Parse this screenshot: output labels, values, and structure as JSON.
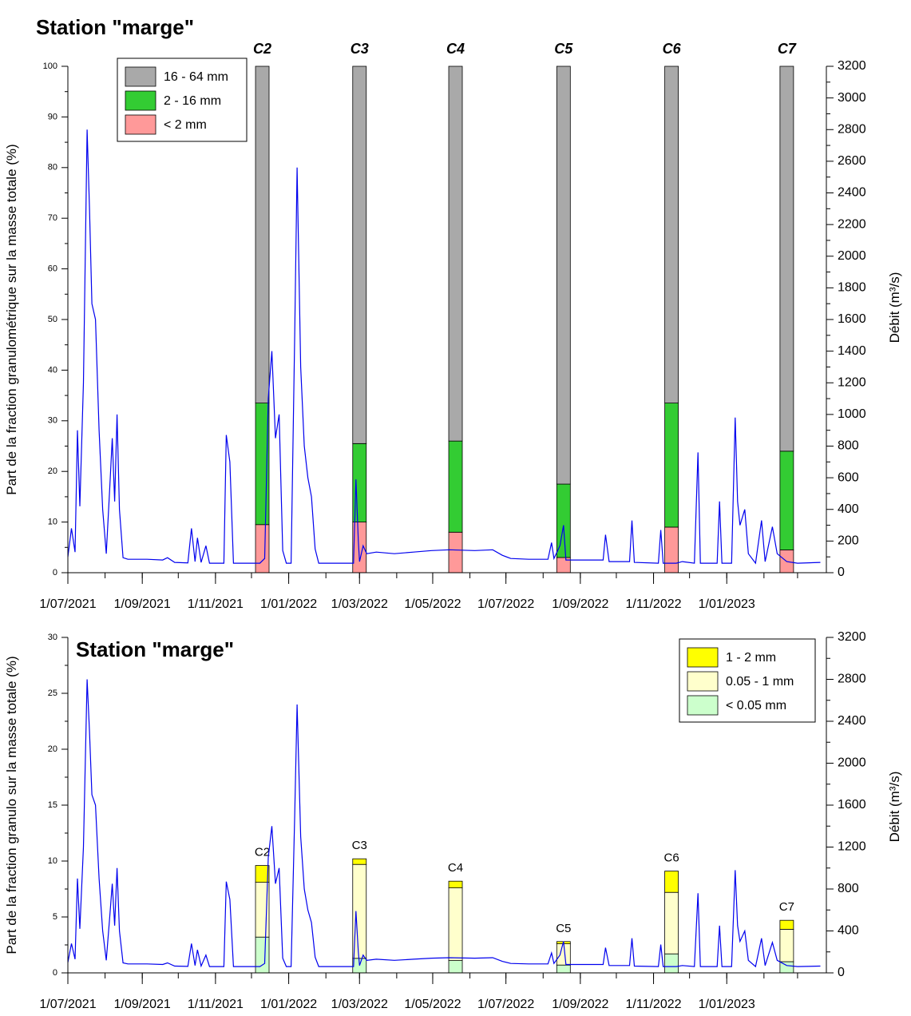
{
  "colors": {
    "gray": "#a9a9a9",
    "green": "#33cc33",
    "pink": "#ff9999",
    "yellow": "#ffff00",
    "cream": "#ffffcc",
    "mint": "#ccffcc",
    "flow": "#0000ee"
  },
  "chart_data": [
    {
      "type": "bar",
      "title": "Station \"marge\"",
      "ylabel": "Part de la fraction granulométrique sur la masse totale (%)",
      "y2label": "Débit (m³/s)",
      "ylim": [
        0,
        100
      ],
      "y2lim": [
        0,
        3200
      ],
      "x_ticks": [
        "1/07/2021",
        "1/09/2021",
        "1/11/2021",
        "1/01/2022",
        "1/03/2022",
        "1/05/2022",
        "1/07/2022",
        "1/09/2022",
        "1/11/2022",
        "1/01/2023"
      ],
      "legend_position": "top-left",
      "legend": [
        {
          "label": "16 - 64 mm",
          "color_key": "gray"
        },
        {
          "label": "2 - 16 mm",
          "color_key": "green"
        },
        {
          "label": "< 2 mm",
          "color_key": "pink"
        }
      ],
      "campaigns": [
        {
          "label": "C2",
          "date": "2021-12-10",
          "values": [
            9.5,
            24.0,
            66.5
          ]
        },
        {
          "label": "C3",
          "date": "2022-03-01",
          "values": [
            10.0,
            15.5,
            74.5
          ]
        },
        {
          "label": "C4",
          "date": "2022-05-20",
          "values": [
            8.0,
            18.0,
            74.0
          ]
        },
        {
          "label": "C5",
          "date": "2022-08-18",
          "values": [
            3.0,
            14.5,
            82.5
          ]
        },
        {
          "label": "C6",
          "date": "2022-11-16",
          "values": [
            9.0,
            24.5,
            66.5
          ]
        },
        {
          "label": "C7",
          "date": "2023-02-20",
          "values": [
            4.5,
            19.5,
            76.0
          ]
        }
      ],
      "flow_series": {
        "name": "Débit",
        "points": [
          [
            "2021-07-01",
            100
          ],
          [
            "2021-07-04",
            280
          ],
          [
            "2021-07-07",
            130
          ],
          [
            "2021-07-09",
            900
          ],
          [
            "2021-07-11",
            420
          ],
          [
            "2021-07-14",
            1200
          ],
          [
            "2021-07-17",
            2800
          ],
          [
            "2021-07-19",
            2300
          ],
          [
            "2021-07-21",
            1700
          ],
          [
            "2021-07-24",
            1600
          ],
          [
            "2021-07-27",
            900
          ],
          [
            "2021-07-30",
            400
          ],
          [
            "2021-08-02",
            120
          ],
          [
            "2021-08-05",
            550
          ],
          [
            "2021-08-07",
            850
          ],
          [
            "2021-08-09",
            450
          ],
          [
            "2021-08-11",
            1000
          ],
          [
            "2021-08-13",
            400
          ],
          [
            "2021-08-16",
            95
          ],
          [
            "2021-08-20",
            85
          ],
          [
            "2021-09-05",
            85
          ],
          [
            "2021-09-18",
            80
          ],
          [
            "2021-09-22",
            95
          ],
          [
            "2021-09-28",
            65
          ],
          [
            "2021-10-09",
            62
          ],
          [
            "2021-10-12",
            280
          ],
          [
            "2021-10-15",
            70
          ],
          [
            "2021-10-17",
            220
          ],
          [
            "2021-10-20",
            65
          ],
          [
            "2021-10-24",
            170
          ],
          [
            "2021-10-27",
            60
          ],
          [
            "2021-11-08",
            60
          ],
          [
            "2021-11-10",
            870
          ],
          [
            "2021-11-13",
            700
          ],
          [
            "2021-11-16",
            60
          ],
          [
            "2021-12-08",
            60
          ],
          [
            "2021-12-12",
            90
          ],
          [
            "2021-12-15",
            1100
          ],
          [
            "2021-12-18",
            1400
          ],
          [
            "2021-12-21",
            850
          ],
          [
            "2021-12-24",
            1000
          ],
          [
            "2021-12-27",
            140
          ],
          [
            "2021-12-30",
            60
          ],
          [
            "2022-01-03",
            60
          ],
          [
            "2022-01-06",
            1500
          ],
          [
            "2022-01-08",
            2560
          ],
          [
            "2022-01-11",
            1300
          ],
          [
            "2022-01-14",
            800
          ],
          [
            "2022-01-17",
            600
          ],
          [
            "2022-01-20",
            480
          ],
          [
            "2022-01-23",
            150
          ],
          [
            "2022-01-26",
            60
          ],
          [
            "2022-02-24",
            60
          ],
          [
            "2022-02-26",
            590
          ],
          [
            "2022-02-28",
            200
          ],
          [
            "2022-03-01",
            70
          ],
          [
            "2022-03-04",
            170
          ],
          [
            "2022-03-07",
            120
          ],
          [
            "2022-03-15",
            130
          ],
          [
            "2022-03-30",
            120
          ],
          [
            "2022-04-15",
            130
          ],
          [
            "2022-04-30",
            140
          ],
          [
            "2022-05-15",
            145
          ],
          [
            "2022-06-05",
            140
          ],
          [
            "2022-06-20",
            145
          ],
          [
            "2022-06-28",
            110
          ],
          [
            "2022-07-05",
            90
          ],
          [
            "2022-07-20",
            85
          ],
          [
            "2022-08-05",
            85
          ],
          [
            "2022-08-08",
            190
          ],
          [
            "2022-08-10",
            90
          ],
          [
            "2022-08-15",
            170
          ],
          [
            "2022-08-18",
            300
          ],
          [
            "2022-08-20",
            80
          ],
          [
            "2022-09-01",
            80
          ],
          [
            "2022-09-20",
            80
          ],
          [
            "2022-09-22",
            240
          ],
          [
            "2022-09-25",
            70
          ],
          [
            "2022-10-12",
            70
          ],
          [
            "2022-10-14",
            330
          ],
          [
            "2022-10-16",
            65
          ],
          [
            "2022-11-05",
            60
          ],
          [
            "2022-11-07",
            270
          ],
          [
            "2022-11-09",
            60
          ],
          [
            "2022-11-20",
            60
          ],
          [
            "2022-11-25",
            70
          ],
          [
            "2022-12-05",
            60
          ],
          [
            "2022-12-08",
            760
          ],
          [
            "2022-12-10",
            60
          ],
          [
            "2022-12-24",
            60
          ],
          [
            "2022-12-26",
            450
          ],
          [
            "2022-12-28",
            60
          ],
          [
            "2023-01-05",
            60
          ],
          [
            "2023-01-08",
            980
          ],
          [
            "2023-01-10",
            450
          ],
          [
            "2023-01-12",
            300
          ],
          [
            "2023-01-16",
            400
          ],
          [
            "2023-01-19",
            120
          ],
          [
            "2023-01-25",
            60
          ],
          [
            "2023-01-30",
            330
          ],
          [
            "2023-02-02",
            70
          ],
          [
            "2023-02-08",
            290
          ],
          [
            "2023-02-12",
            120
          ],
          [
            "2023-02-20",
            70
          ],
          [
            "2023-03-01",
            60
          ],
          [
            "2023-03-20",
            65
          ]
        ]
      }
    },
    {
      "type": "bar",
      "title": "Station \"marge\"",
      "ylabel": "Part de la fraction granulo sur la masse totale (%)",
      "y2label": "Débit (m³/s)",
      "ylim": [
        0,
        30
      ],
      "y2lim": [
        0,
        3200
      ],
      "x_ticks": [
        "1/07/2021",
        "1/09/2021",
        "1/11/2021",
        "1/01/2022",
        "1/03/2022",
        "1/05/2022",
        "1/07/2022",
        "1/09/2022",
        "1/11/2022",
        "1/01/2023"
      ],
      "legend_position": "top-right",
      "legend": [
        {
          "label": "1 - 2 mm",
          "color_key": "yellow"
        },
        {
          "label": "0.05 - 1 mm",
          "color_key": "cream"
        },
        {
          "label": "< 0.05 mm",
          "color_key": "mint"
        }
      ],
      "campaigns": [
        {
          "label": "C2",
          "date": "2021-12-10",
          "values": [
            3.2,
            4.9,
            1.5
          ]
        },
        {
          "label": "C3",
          "date": "2022-03-01",
          "values": [
            1.3,
            8.4,
            0.5
          ]
        },
        {
          "label": "C4",
          "date": "2022-05-20",
          "values": [
            1.1,
            6.5,
            0.6
          ]
        },
        {
          "label": "C5",
          "date": "2022-08-18",
          "values": [
            0.7,
            1.9,
            0.2
          ]
        },
        {
          "label": "C6",
          "date": "2022-11-16",
          "values": [
            1.7,
            5.5,
            1.9
          ]
        },
        {
          "label": "C7",
          "date": "2023-02-20",
          "values": [
            1.0,
            2.9,
            0.8
          ]
        }
      ],
      "flow_series": {
        "name": "Débit",
        "points": [
          [
            "2021-07-01",
            100
          ],
          [
            "2021-07-04",
            280
          ],
          [
            "2021-07-07",
            130
          ],
          [
            "2021-07-09",
            900
          ],
          [
            "2021-07-11",
            420
          ],
          [
            "2021-07-14",
            1200
          ],
          [
            "2021-07-17",
            2800
          ],
          [
            "2021-07-19",
            2300
          ],
          [
            "2021-07-21",
            1700
          ],
          [
            "2021-07-24",
            1600
          ],
          [
            "2021-07-27",
            900
          ],
          [
            "2021-07-30",
            400
          ],
          [
            "2021-08-02",
            120
          ],
          [
            "2021-08-05",
            550
          ],
          [
            "2021-08-07",
            850
          ],
          [
            "2021-08-09",
            450
          ],
          [
            "2021-08-11",
            1000
          ],
          [
            "2021-08-13",
            400
          ],
          [
            "2021-08-16",
            95
          ],
          [
            "2021-08-20",
            85
          ],
          [
            "2021-09-05",
            85
          ],
          [
            "2021-09-18",
            80
          ],
          [
            "2021-09-22",
            95
          ],
          [
            "2021-09-28",
            65
          ],
          [
            "2021-10-09",
            62
          ],
          [
            "2021-10-12",
            280
          ],
          [
            "2021-10-15",
            70
          ],
          [
            "2021-10-17",
            220
          ],
          [
            "2021-10-20",
            65
          ],
          [
            "2021-10-24",
            170
          ],
          [
            "2021-10-27",
            60
          ],
          [
            "2021-11-08",
            60
          ],
          [
            "2021-11-10",
            870
          ],
          [
            "2021-11-13",
            700
          ],
          [
            "2021-11-16",
            60
          ],
          [
            "2021-12-08",
            60
          ],
          [
            "2021-12-12",
            90
          ],
          [
            "2021-12-15",
            1100
          ],
          [
            "2021-12-18",
            1400
          ],
          [
            "2021-12-21",
            850
          ],
          [
            "2021-12-24",
            1000
          ],
          [
            "2021-12-27",
            140
          ],
          [
            "2021-12-30",
            60
          ],
          [
            "2022-01-03",
            60
          ],
          [
            "2022-01-06",
            1500
          ],
          [
            "2022-01-08",
            2560
          ],
          [
            "2022-01-11",
            1300
          ],
          [
            "2022-01-14",
            800
          ],
          [
            "2022-01-17",
            600
          ],
          [
            "2022-01-20",
            480
          ],
          [
            "2022-01-23",
            150
          ],
          [
            "2022-01-26",
            60
          ],
          [
            "2022-02-24",
            60
          ],
          [
            "2022-02-26",
            590
          ],
          [
            "2022-02-28",
            200
          ],
          [
            "2022-03-01",
            70
          ],
          [
            "2022-03-04",
            170
          ],
          [
            "2022-03-07",
            120
          ],
          [
            "2022-03-15",
            130
          ],
          [
            "2022-03-30",
            120
          ],
          [
            "2022-04-15",
            130
          ],
          [
            "2022-04-30",
            140
          ],
          [
            "2022-05-15",
            145
          ],
          [
            "2022-06-05",
            140
          ],
          [
            "2022-06-20",
            145
          ],
          [
            "2022-06-28",
            110
          ],
          [
            "2022-07-05",
            90
          ],
          [
            "2022-07-20",
            85
          ],
          [
            "2022-08-05",
            85
          ],
          [
            "2022-08-08",
            190
          ],
          [
            "2022-08-10",
            90
          ],
          [
            "2022-08-15",
            170
          ],
          [
            "2022-08-18",
            300
          ],
          [
            "2022-08-20",
            80
          ],
          [
            "2022-09-01",
            80
          ],
          [
            "2022-09-20",
            80
          ],
          [
            "2022-09-22",
            240
          ],
          [
            "2022-09-25",
            70
          ],
          [
            "2022-10-12",
            70
          ],
          [
            "2022-10-14",
            330
          ],
          [
            "2022-10-16",
            65
          ],
          [
            "2022-11-05",
            60
          ],
          [
            "2022-11-07",
            270
          ],
          [
            "2022-11-09",
            60
          ],
          [
            "2022-11-20",
            60
          ],
          [
            "2022-11-25",
            70
          ],
          [
            "2022-12-05",
            60
          ],
          [
            "2022-12-08",
            760
          ],
          [
            "2022-12-10",
            60
          ],
          [
            "2022-12-24",
            60
          ],
          [
            "2022-12-26",
            450
          ],
          [
            "2022-12-28",
            60
          ],
          [
            "2023-01-05",
            60
          ],
          [
            "2023-01-08",
            980
          ],
          [
            "2023-01-10",
            450
          ],
          [
            "2023-01-12",
            300
          ],
          [
            "2023-01-16",
            400
          ],
          [
            "2023-01-19",
            120
          ],
          [
            "2023-01-25",
            60
          ],
          [
            "2023-01-30",
            330
          ],
          [
            "2023-02-02",
            70
          ],
          [
            "2023-02-08",
            290
          ],
          [
            "2023-02-12",
            120
          ],
          [
            "2023-02-20",
            70
          ],
          [
            "2023-03-01",
            60
          ],
          [
            "2023-03-20",
            65
          ]
        ]
      }
    }
  ]
}
